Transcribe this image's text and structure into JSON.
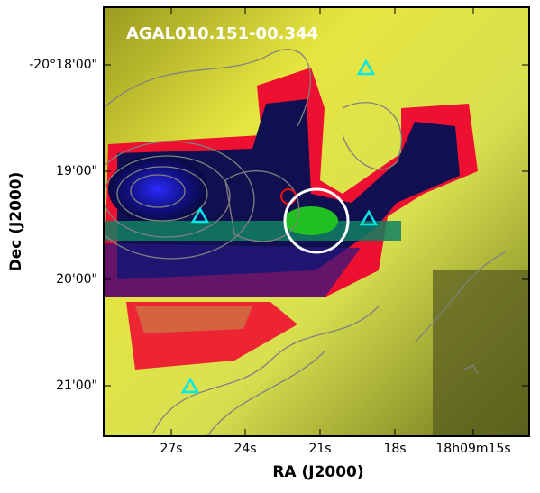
{
  "image": {
    "label": "AGAL010.151-00.344"
  },
  "x_axis": {
    "label": "RA (J2000)",
    "ticks": [
      "27s",
      "24s",
      "21s",
      "18s",
      "18h09m15s"
    ]
  },
  "y_axis": {
    "label": "Dec (J2000)",
    "ticks": [
      "-20°18'00\"",
      "19'00\"",
      "20'00\"",
      "21'00\""
    ]
  }
}
